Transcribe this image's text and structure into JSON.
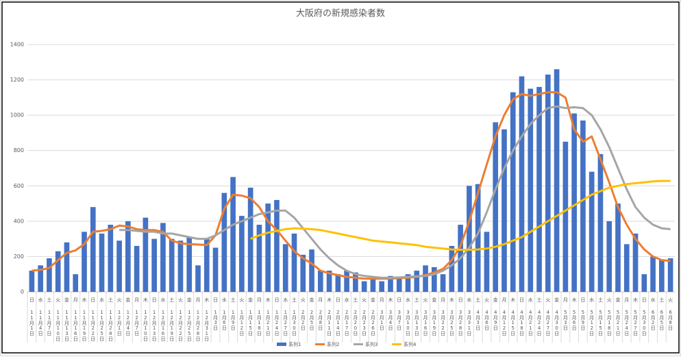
{
  "chart_data": {
    "type": "bar-line",
    "title": "大阪府の新規感染者数",
    "categories": [
      "11月1日",
      "11月4日",
      "11月7日",
      "11月10日",
      "11月13日",
      "11月16日",
      "11月19日",
      "11月22日",
      "11月25日",
      "11月28日",
      "12月1日",
      "12月4日",
      "12月7日",
      "12月10日",
      "12月13日",
      "12月16日",
      "12月19日",
      "12月22日",
      "12月25日",
      "12月28日",
      "12月31日",
      "1月3日",
      "1月6日",
      "1月9日",
      "1月12日",
      "1月15日",
      "1月18日",
      "1月21日",
      "1月24日",
      "1月27日",
      "1月30日",
      "2月2日",
      "2月5日",
      "2月8日",
      "2月11日",
      "2月14日",
      "2月17日",
      "2月20日",
      "2月23日",
      "2月26日",
      "3月1日",
      "3月4日",
      "3月7日",
      "3月10日",
      "3月13日",
      "3月16日",
      "3月19日",
      "3月22日",
      "3月25日",
      "3月28日",
      "3月31日",
      "4月3日",
      "4月6日",
      "4月9日",
      "4月12日",
      "4月15日",
      "4月18日",
      "4月21日",
      "4月24日",
      "4月27日",
      "4月30日",
      "5月3日",
      "5月6日",
      "5月9日",
      "5月12日",
      "5月15日",
      "5月18日",
      "5月21日",
      "5月24日",
      "5月27日",
      "5月30日",
      "6月2日",
      "6月5日",
      "6月8日"
    ],
    "weekdays": [
      "日",
      "水",
      "土",
      "火",
      "金",
      "月",
      "木",
      "日",
      "水",
      "土",
      "火",
      "金",
      "月",
      "木",
      "日",
      "水",
      "土",
      "火",
      "金",
      "月",
      "木",
      "日",
      "水",
      "土",
      "火",
      "金",
      "月",
      "木",
      "日",
      "水",
      "土",
      "火",
      "金",
      "月",
      "木",
      "日",
      "水",
      "土",
      "火",
      "金",
      "月",
      "木",
      "日",
      "水",
      "土",
      "火",
      "金",
      "月",
      "木",
      "日",
      "水",
      "土",
      "火",
      "金",
      "月",
      "木",
      "日",
      "水",
      "土",
      "火",
      "金",
      "月",
      "木",
      "日",
      "水",
      "土",
      "火",
      "金",
      "月",
      "木",
      "日",
      "水",
      "土",
      "火"
    ],
    "series": [
      {
        "name": "系列1",
        "kind": "bar",
        "color": "#4472c4",
        "values": [
          120,
          150,
          190,
          230,
          280,
          100,
          340,
          480,
          330,
          380,
          290,
          400,
          260,
          420,
          300,
          390,
          300,
          290,
          310,
          150,
          300,
          250,
          560,
          650,
          430,
          590,
          380,
          500,
          520,
          270,
          330,
          210,
          240,
          120,
          120,
          100,
          120,
          110,
          60,
          80,
          60,
          90,
          80,
          100,
          120,
          150,
          140,
          100,
          260,
          380,
          600,
          610,
          340,
          960,
          920,
          1130,
          1220,
          1150,
          1160,
          1230,
          1260,
          850,
          1010,
          970,
          680,
          780,
          400,
          500,
          270,
          330,
          100,
          200,
          180,
          190
        ]
      },
      {
        "name": "系列2",
        "kind": "line",
        "color": "#ed7d31",
        "values": [
          120,
          125,
          135,
          180,
          220,
          235,
          270,
          340,
          345,
          355,
          375,
          370,
          355,
          350,
          350,
          340,
          290,
          275,
          270,
          268,
          265,
          320,
          470,
          550,
          545,
          530,
          480,
          400,
          350,
          290,
          230,
          190,
          160,
          120,
          105,
          95,
          85,
          80,
          75,
          75,
          75,
          75,
          78,
          80,
          85,
          95,
          110,
          130,
          180,
          260,
          400,
          560,
          720,
          880,
          1000,
          1090,
          1120,
          1110,
          1120,
          1130,
          1130,
          1100,
          920,
          850,
          880,
          750,
          620,
          480,
          380,
          300,
          240,
          200,
          180,
          175
        ]
      },
      {
        "name": "系列3",
        "kind": "line",
        "color": "#a5a5a5",
        "values": [
          null,
          null,
          null,
          null,
          null,
          null,
          null,
          null,
          null,
          null,
          350,
          350,
          345,
          340,
          340,
          330,
          330,
          320,
          310,
          300,
          300,
          320,
          350,
          380,
          400,
          420,
          440,
          450,
          460,
          460,
          420,
          360,
          300,
          240,
          190,
          150,
          120,
          100,
          90,
          85,
          80,
          80,
          82,
          85,
          88,
          90,
          100,
          120,
          150,
          190,
          250,
          330,
          450,
          580,
          700,
          800,
          880,
          950,
          1000,
          1040,
          1050,
          1040,
          1045,
          1040,
          1000,
          920,
          820,
          700,
          580,
          480,
          420,
          380,
          360,
          355
        ]
      },
      {
        "name": "系列4",
        "kind": "line",
        "color": "#ffc000",
        "values": [
          null,
          null,
          null,
          null,
          null,
          null,
          null,
          null,
          null,
          null,
          null,
          null,
          null,
          null,
          null,
          null,
          null,
          null,
          null,
          null,
          null,
          null,
          null,
          null,
          null,
          300,
          320,
          335,
          345,
          355,
          360,
          358,
          355,
          350,
          340,
          330,
          320,
          310,
          300,
          290,
          285,
          280,
          275,
          270,
          265,
          255,
          250,
          245,
          240,
          238,
          238,
          240,
          245,
          255,
          270,
          290,
          310,
          340,
          370,
          400,
          430,
          460,
          490,
          520,
          550,
          570,
          590,
          600,
          610,
          615,
          620,
          625,
          628,
          628
        ]
      }
    ],
    "ylim": [
      0,
      1400
    ],
    "yticks": [
      0,
      200,
      400,
      600,
      800,
      1000,
      1200,
      1400
    ],
    "grid": true,
    "legend": "bottom"
  }
}
